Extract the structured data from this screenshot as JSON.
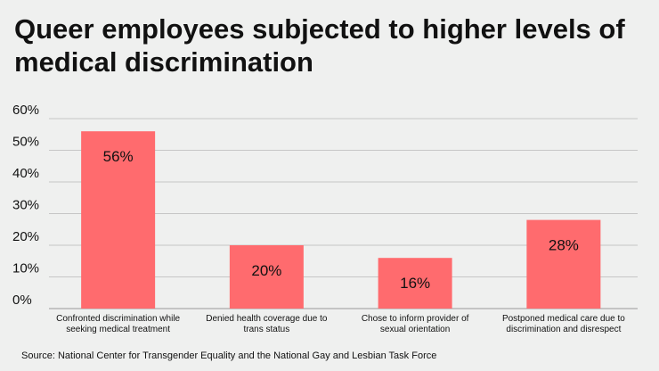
{
  "chart_data": {
    "type": "bar",
    "title": "Queer employees subjected to higher levels of medical discrimination",
    "categories": [
      [
        "Confronted discrimination while",
        "seeking medical treatment"
      ],
      [
        "Denied health coverage due to",
        "trans status"
      ],
      [
        "Chose to inform provider of",
        "sexual orientation"
      ],
      [
        "Postponed medical care due to",
        "discrimination and disrespect"
      ]
    ],
    "values": [
      56,
      20,
      16,
      28
    ],
    "data_labels": [
      "56%",
      "20%",
      "16%",
      "28%"
    ],
    "xlabel": "",
    "ylabel": "",
    "ylim": [
      0,
      60
    ],
    "yticks": [
      0,
      10,
      20,
      30,
      40,
      50,
      60
    ],
    "ytick_labels": [
      "0%",
      "10%",
      "20%",
      "30%",
      "40%",
      "50%",
      "60%"
    ],
    "grid": true,
    "bar_color": "#ff6b6e",
    "source": "Source: National Center for Transgender Equality and the National Gay and Lesbian Task Force"
  }
}
